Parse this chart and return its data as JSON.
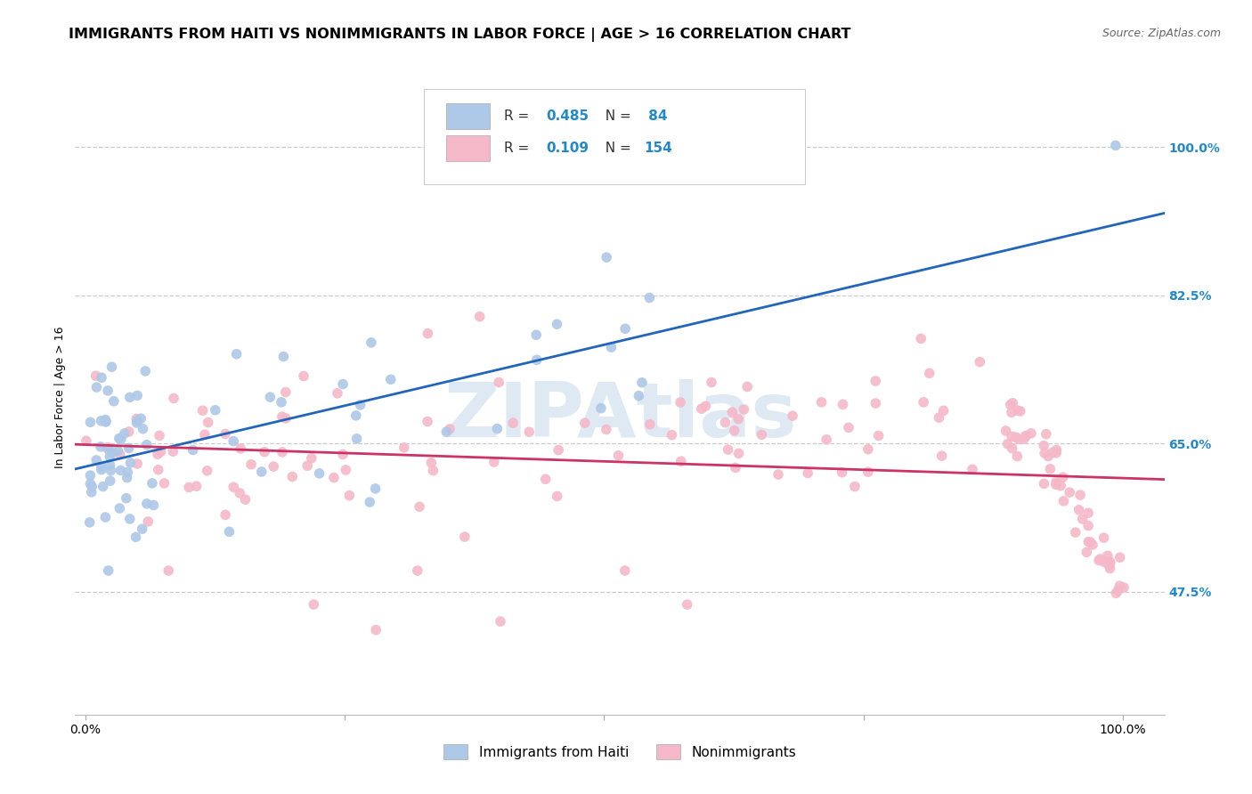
{
  "title": "IMMIGRANTS FROM HAITI VS NONIMMIGRANTS IN LABOR FORCE | AGE > 16 CORRELATION CHART",
  "source": "Source: ZipAtlas.com",
  "ylabel": "In Labor Force | Age > 16",
  "legend_label1": "Immigrants from Haiti",
  "legend_label2": "Nonimmigrants",
  "R1": "0.485",
  "N1": " 84",
  "R2": "0.109",
  "N2": "154",
  "color1": "#aec8e8",
  "color2": "#f5b8c8",
  "line_color1": "#2266bb",
  "line_color2": "#cc3366",
  "watermark": "ZIPAtlas",
  "background_color": "#ffffff",
  "grid_color": "#cccccc",
  "title_fontsize": 11.5,
  "source_fontsize": 9,
  "label_fontsize": 9,
  "tick_fontsize": 10,
  "legend_fontsize": 11,
  "stat_fontsize": 11,
  "blue_stat_color": "#2288cc",
  "xlim": [
    -0.01,
    1.04
  ],
  "ylim": [
    0.33,
    1.08
  ],
  "y_tick_vals": [
    0.475,
    0.65,
    0.825,
    1.0
  ],
  "y_tick_labels": [
    "47.5%",
    "65.0%",
    "82.5%",
    "100.0%"
  ]
}
